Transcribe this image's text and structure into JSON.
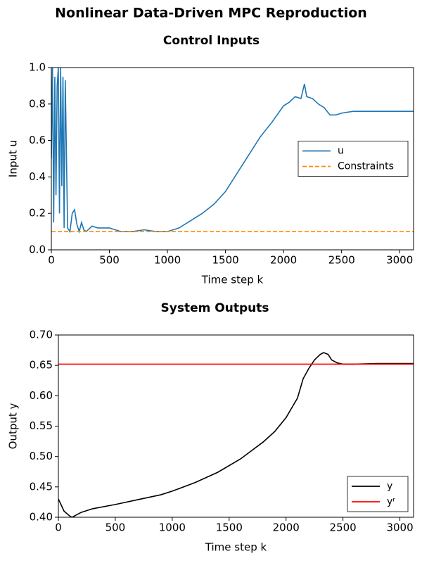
{
  "title": "Nonlinear Data-Driven MPC Reproduction",
  "chart_data": [
    {
      "type": "line",
      "title": "Control Inputs",
      "x_label": "Time step k",
      "y_label": "Input u",
      "xlim": [
        0,
        3120
      ],
      "ylim": [
        0,
        1
      ],
      "xticks": [
        0,
        500,
        1000,
        1500,
        2000,
        2500,
        3000
      ],
      "yticks": [
        {
          "value": 0,
          "label": "0.0"
        },
        0.2,
        0.4,
        0.6,
        0.8,
        {
          "value": 1,
          "label": "1.0"
        }
      ],
      "legend": "center right",
      "series": [
        {
          "name": "u",
          "color": "#1f77b4",
          "style": "solid",
          "x": [
            0,
            10,
            20,
            30,
            40,
            50,
            60,
            70,
            80,
            90,
            100,
            110,
            120,
            140,
            160,
            180,
            200,
            220,
            240,
            260,
            280,
            300,
            350,
            400,
            500,
            600,
            700,
            800,
            900,
            1000,
            1100,
            1200,
            1300,
            1400,
            1500,
            1600,
            1700,
            1800,
            1900,
            2000,
            2050,
            2100,
            2150,
            2180,
            2200,
            2250,
            2300,
            2350,
            2400,
            2450,
            2500,
            2600,
            2700,
            2800,
            3000,
            3120
          ],
          "values": [
            0.5,
            1.0,
            0.15,
            0.95,
            0.3,
            0.9,
            1.0,
            0.2,
            1.0,
            0.35,
            0.95,
            0.12,
            0.93,
            0.12,
            0.1,
            0.2,
            0.22,
            0.14,
            0.1,
            0.15,
            0.11,
            0.1,
            0.13,
            0.12,
            0.12,
            0.1,
            0.1,
            0.11,
            0.1,
            0.1,
            0.12,
            0.16,
            0.2,
            0.25,
            0.32,
            0.42,
            0.52,
            0.62,
            0.7,
            0.79,
            0.81,
            0.84,
            0.83,
            0.91,
            0.84,
            0.83,
            0.8,
            0.78,
            0.74,
            0.74,
            0.75,
            0.76,
            0.76,
            0.76,
            0.76,
            0.76
          ]
        },
        {
          "name": "Constraints",
          "color": "#ff8c00",
          "style": "dashed",
          "x": [
            0,
            3120
          ],
          "values": [
            0.1,
            0.1
          ]
        }
      ]
    },
    {
      "type": "line",
      "title": "System Outputs",
      "x_label": "Time step k",
      "y_label": "Output y",
      "xlim": [
        0,
        3120
      ],
      "ylim": [
        0.4,
        0.7
      ],
      "xticks": [
        0,
        500,
        1000,
        1500,
        2000,
        2500,
        3000
      ],
      "yticks": [
        {
          "value": 0.4,
          "label": "0.40"
        },
        0.45,
        {
          "value": 0.5,
          "label": "0.50"
        },
        0.55,
        {
          "value": 0.6,
          "label": "0.60"
        },
        0.65,
        {
          "value": 0.7,
          "label": "0.70"
        }
      ],
      "legend": "lower right",
      "series": [
        {
          "name": "y",
          "color": "#000000",
          "style": "solid",
          "x": [
            0,
            50,
            100,
            120,
            150,
            200,
            300,
            500,
            700,
            900,
            1000,
            1200,
            1400,
            1600,
            1800,
            1900,
            2000,
            2100,
            2150,
            2200,
            2250,
            2300,
            2330,
            2370,
            2400,
            2450,
            2500,
            2600,
            2800,
            3000,
            3120
          ],
          "values": [
            0.43,
            0.41,
            0.402,
            0.4,
            0.403,
            0.408,
            0.414,
            0.421,
            0.429,
            0.437,
            0.443,
            0.457,
            0.474,
            0.496,
            0.524,
            0.541,
            0.564,
            0.596,
            0.628,
            0.645,
            0.659,
            0.668,
            0.671,
            0.668,
            0.659,
            0.654,
            0.652,
            0.652,
            0.653,
            0.653,
            0.653
          ]
        },
        {
          "name": "yʳ",
          "color": "#ff0000",
          "style": "solid",
          "x": [
            0,
            3120
          ],
          "values": [
            0.652,
            0.652
          ]
        }
      ]
    }
  ]
}
